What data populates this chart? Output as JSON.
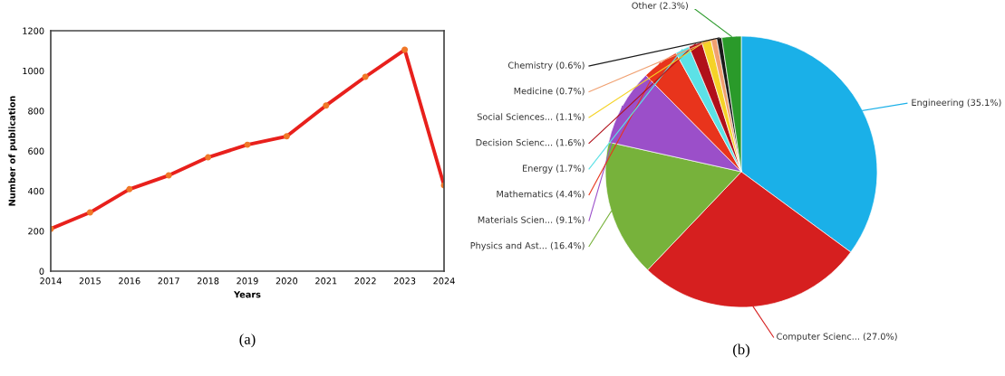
{
  "chart_data": [
    {
      "type": "line",
      "xlabel": "Years",
      "ylabel": "Number of publication",
      "x": [
        2014,
        2015,
        2016,
        2017,
        2018,
        2019,
        2020,
        2021,
        2022,
        2023,
        2024
      ],
      "series": [
        {
          "color": "#e8201c",
          "values": [
            211,
            293,
            409,
            478,
            568,
            631,
            673,
            827,
            970,
            1105,
            428
          ]
        }
      ],
      "marker": "circle",
      "line_style": "solid",
      "xlim": [
        2014,
        2024
      ],
      "xticks": [
        2014,
        2015,
        2016,
        2017,
        2018,
        2019,
        2020,
        2021,
        2022,
        2023,
        2024
      ],
      "ylim": [
        0,
        1200
      ],
      "yticks": [
        0,
        200,
        400,
        600,
        800,
        1000,
        1200
      ],
      "grid": false,
      "annotations": [
        "(a)"
      ]
    },
    {
      "type": "pie",
      "categories": [
        "Engineering",
        "Computer Scienc...",
        "Physics and Ast...",
        "Materials Scien...",
        "Mathematics",
        "Energy",
        "Decision Scienc...",
        "Social Sciences...",
        "Medicine",
        "Chemistry",
        "Other"
      ],
      "values": [
        35.1,
        27.0,
        16.4,
        9.1,
        4.4,
        1.7,
        1.6,
        1.1,
        0.7,
        0.6,
        2.3
      ],
      "value_labels": [
        "(35.1%)",
        "(27.0%)",
        "(16.4%)",
        "(9.1%)",
        "(4.4%)",
        "(1.7%)",
        "(1.6%)",
        "(1.1%)",
        "(0.7%)",
        "(0.6%)",
        "(2.3%)"
      ],
      "colors": [
        "#1ab0e8",
        "#d61f1f",
        "#77b23b",
        "#9b4fc9",
        "#e8341c",
        "#5ce1e6",
        "#b0101a",
        "#f5d327",
        "#f0a070",
        "#1a1a1a",
        "#2a9a2a"
      ],
      "annotations": [
        "(b)"
      ]
    }
  ]
}
